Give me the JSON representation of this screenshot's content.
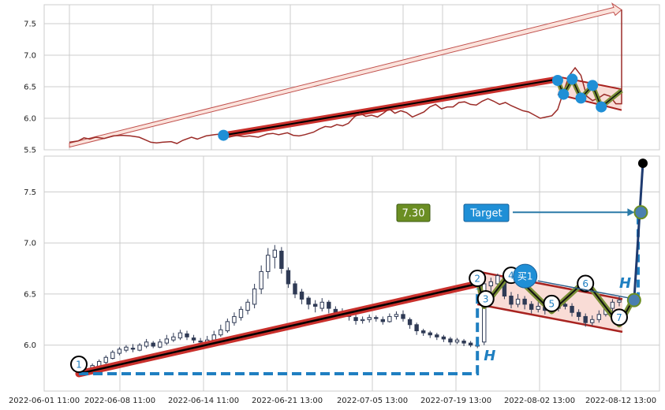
{
  "chart_data": {
    "type": "candlestick",
    "title": "",
    "grid": true,
    "x_tick_labels": [
      "2022-06-01 11:00",
      "2022-06-08 11:00",
      "2022-06-14 11:00",
      "2022-06-21 13:00",
      "2022-07-05 13:00",
      "2022-07-19 13:00",
      "2022-08-02 13:00",
      "2022-08-12 13:00"
    ],
    "top_panel": {
      "type": "line",
      "y_ticks": [
        "5.5",
        "6.0",
        "6.5",
        "7.0",
        "7.5"
      ],
      "ylim": [
        5.5,
        7.8
      ],
      "xlim": [
        0,
        190
      ],
      "price_series": [
        [
          0,
          5.62
        ],
        [
          3,
          5.64
        ],
        [
          5,
          5.69
        ],
        [
          7,
          5.67
        ],
        [
          9,
          5.7
        ],
        [
          12,
          5.68
        ],
        [
          15,
          5.72
        ],
        [
          18,
          5.73
        ],
        [
          21,
          5.72
        ],
        [
          24,
          5.7
        ],
        [
          26,
          5.66
        ],
        [
          28,
          5.62
        ],
        [
          30,
          5.61
        ],
        [
          32,
          5.62
        ],
        [
          35,
          5.63
        ],
        [
          37,
          5.6
        ],
        [
          39,
          5.65
        ],
        [
          42,
          5.7
        ],
        [
          44,
          5.67
        ],
        [
          47,
          5.72
        ],
        [
          50,
          5.74
        ],
        [
          52,
          5.75
        ],
        [
          55,
          5.7
        ],
        [
          57,
          5.73
        ],
        [
          60,
          5.71
        ],
        [
          62,
          5.72
        ],
        [
          65,
          5.7
        ],
        [
          68,
          5.75
        ],
        [
          70,
          5.76
        ],
        [
          72,
          5.74
        ],
        [
          75,
          5.77
        ],
        [
          77,
          5.73
        ],
        [
          79,
          5.72
        ],
        [
          81,
          5.74
        ],
        [
          84,
          5.78
        ],
        [
          86,
          5.83
        ],
        [
          88,
          5.87
        ],
        [
          90,
          5.86
        ],
        [
          92,
          5.9
        ],
        [
          94,
          5.88
        ],
        [
          96,
          5.92
        ],
        [
          98,
          6.02
        ],
        [
          100,
          6.08
        ],
        [
          102,
          6.03
        ],
        [
          104,
          6.05
        ],
        [
          106,
          6.02
        ],
        [
          108,
          6.08
        ],
        [
          110,
          6.15
        ],
        [
          112,
          6.08
        ],
        [
          114,
          6.12
        ],
        [
          116,
          6.09
        ],
        [
          118,
          6.02
        ],
        [
          120,
          6.06
        ],
        [
          122,
          6.1
        ],
        [
          124,
          6.18
        ],
        [
          126,
          6.22
        ],
        [
          128,
          6.15
        ],
        [
          130,
          6.18
        ],
        [
          132,
          6.18
        ],
        [
          134,
          6.25
        ],
        [
          136,
          6.26
        ],
        [
          138,
          6.22
        ],
        [
          140,
          6.21
        ],
        [
          142,
          6.27
        ],
        [
          144,
          6.31
        ],
        [
          146,
          6.27
        ],
        [
          148,
          6.22
        ],
        [
          150,
          6.25
        ],
        [
          152,
          6.2
        ],
        [
          154,
          6.16
        ],
        [
          156,
          6.12
        ],
        [
          158,
          6.1
        ],
        [
          160,
          6.05
        ],
        [
          162,
          6.0
        ],
        [
          164,
          6.02
        ],
        [
          166,
          6.04
        ],
        [
          168,
          6.14
        ],
        [
          170,
          6.42
        ],
        [
          172,
          6.68
        ],
        [
          174,
          6.8
        ],
        [
          176,
          6.68
        ],
        [
          178,
          6.35
        ],
        [
          180,
          6.28
        ],
        [
          182,
          6.32
        ],
        [
          184,
          6.38
        ],
        [
          186,
          6.35
        ],
        [
          188,
          6.23
        ],
        [
          190,
          6.23
        ]
      ]
    },
    "bottom_panel": {
      "type": "candlestick",
      "y_ticks": [
        "6.0",
        "6.5",
        "7.0",
        "7.5"
      ],
      "ylim": [
        5.55,
        7.85
      ],
      "xlim": [
        0,
        100
      ],
      "candles": [
        [
          2,
          5.74,
          5.75,
          5.72,
          5.77
        ],
        [
          3,
          5.73,
          5.76,
          5.72,
          5.77
        ],
        [
          4,
          5.76,
          5.8,
          5.75,
          5.82
        ],
        [
          5,
          5.79,
          5.84,
          5.78,
          5.86
        ],
        [
          6,
          5.83,
          5.88,
          5.81,
          5.9
        ],
        [
          7,
          5.87,
          5.93,
          5.86,
          5.95
        ],
        [
          8,
          5.92,
          5.96,
          5.9,
          5.98
        ],
        [
          9,
          5.95,
          5.98,
          5.93,
          6.0
        ],
        [
          10,
          5.97,
          5.96,
          5.93,
          6.01
        ],
        [
          11,
          5.95,
          6.0,
          5.94,
          6.02
        ],
        [
          12,
          5.99,
          6.03,
          5.97,
          6.06
        ],
        [
          13,
          6.02,
          5.99,
          5.97,
          6.04
        ],
        [
          14,
          5.98,
          6.03,
          5.97,
          6.06
        ],
        [
          15,
          6.02,
          6.06,
          6.0,
          6.1
        ],
        [
          16,
          6.05,
          6.08,
          6.03,
          6.12
        ],
        [
          17,
          6.07,
          6.12,
          6.05,
          6.15
        ],
        [
          18,
          6.11,
          6.08,
          6.05,
          6.14
        ],
        [
          19,
          6.07,
          6.05,
          6.02,
          6.1
        ],
        [
          20,
          6.04,
          6.03,
          6.0,
          6.07
        ],
        [
          21,
          6.02,
          6.05,
          6.0,
          6.09
        ],
        [
          22,
          6.05,
          6.1,
          6.03,
          6.14
        ],
        [
          23,
          6.1,
          6.15,
          6.08,
          6.2
        ],
        [
          24,
          6.14,
          6.23,
          6.12,
          6.26
        ],
        [
          25,
          6.22,
          6.28,
          6.19,
          6.32
        ],
        [
          26,
          6.27,
          6.35,
          6.24,
          6.38
        ],
        [
          27,
          6.34,
          6.42,
          6.3,
          6.45
        ],
        [
          28,
          6.4,
          6.55,
          6.36,
          6.6
        ],
        [
          29,
          6.55,
          6.72,
          6.5,
          6.78
        ],
        [
          30,
          6.72,
          6.88,
          6.65,
          6.95
        ],
        [
          31,
          6.86,
          6.93,
          6.75,
          6.98
        ],
        [
          32,
          6.92,
          6.75,
          6.7,
          6.96
        ],
        [
          33,
          6.73,
          6.6,
          6.56,
          6.76
        ],
        [
          34,
          6.6,
          6.5,
          6.46,
          6.63
        ],
        [
          35,
          6.52,
          6.45,
          6.4,
          6.55
        ],
        [
          36,
          6.46,
          6.4,
          6.35,
          6.48
        ],
        [
          37,
          6.4,
          6.38,
          6.32,
          6.44
        ],
        [
          38,
          6.36,
          6.42,
          6.33,
          6.46
        ],
        [
          39,
          6.42,
          6.36,
          6.31,
          6.44
        ],
        [
          40,
          6.35,
          6.3,
          6.26,
          6.38
        ],
        [
          41,
          6.3,
          6.33,
          6.27,
          6.36
        ],
        [
          42,
          6.32,
          6.28,
          6.24,
          6.35
        ],
        [
          43,
          6.27,
          6.24,
          6.2,
          6.3
        ],
        [
          44,
          6.24,
          6.25,
          6.21,
          6.28
        ],
        [
          45,
          6.25,
          6.27,
          6.22,
          6.3
        ],
        [
          46,
          6.27,
          6.26,
          6.23,
          6.29
        ],
        [
          47,
          6.25,
          6.23,
          6.2,
          6.28
        ],
        [
          48,
          6.23,
          6.28,
          6.22,
          6.31
        ],
        [
          49,
          6.28,
          6.3,
          6.25,
          6.33
        ],
        [
          50,
          6.3,
          6.26,
          6.23,
          6.34
        ],
        [
          51,
          6.25,
          6.2,
          6.16,
          6.27
        ],
        [
          52,
          6.2,
          6.14,
          6.1,
          6.22
        ],
        [
          53,
          6.14,
          6.12,
          6.09,
          6.16
        ],
        [
          54,
          6.12,
          6.1,
          6.07,
          6.14
        ],
        [
          55,
          6.1,
          6.08,
          6.05,
          6.12
        ],
        [
          56,
          6.08,
          6.06,
          6.03,
          6.1
        ],
        [
          57,
          6.06,
          6.03,
          6.0,
          6.08
        ],
        [
          58,
          6.03,
          6.05,
          6.01,
          6.07
        ],
        [
          59,
          6.04,
          6.02,
          5.99,
          6.06
        ],
        [
          60,
          6.02,
          6.0,
          5.98,
          6.04
        ],
        [
          61,
          6.0,
          5.99,
          5.97,
          6.02
        ],
        [
          62,
          6.03,
          6.6,
          6.0,
          6.66
        ],
        [
          63,
          6.58,
          6.62,
          6.5,
          6.66
        ],
        [
          64,
          6.6,
          6.68,
          6.55,
          6.7
        ],
        [
          65,
          6.66,
          6.48,
          6.45,
          6.7
        ],
        [
          66,
          6.48,
          6.4,
          6.36,
          6.52
        ],
        [
          67,
          6.4,
          6.45,
          6.37,
          6.5
        ],
        [
          68,
          6.45,
          6.4,
          6.35,
          6.48
        ],
        [
          69,
          6.4,
          6.35,
          6.31,
          6.43
        ],
        [
          70,
          6.35,
          6.38,
          6.32,
          6.42
        ],
        [
          71,
          6.38,
          6.34,
          6.3,
          6.41
        ],
        [
          72,
          6.34,
          6.36,
          6.31,
          6.4
        ],
        [
          73,
          6.36,
          6.4,
          6.33,
          6.44
        ],
        [
          74,
          6.4,
          6.38,
          6.35,
          6.45
        ],
        [
          75,
          6.38,
          6.32,
          6.28,
          6.41
        ],
        [
          76,
          6.32,
          6.28,
          6.24,
          6.35
        ],
        [
          77,
          6.28,
          6.22,
          6.18,
          6.31
        ],
        [
          78,
          6.22,
          6.25,
          6.19,
          6.29
        ],
        [
          79,
          6.25,
          6.3,
          6.22,
          6.34
        ],
        [
          80,
          6.3,
          6.36,
          6.28,
          6.4
        ],
        [
          81,
          6.36,
          6.42,
          6.33,
          6.45
        ],
        [
          82,
          6.42,
          6.44,
          6.38,
          6.48
        ]
      ],
      "pattern_points": [
        {
          "label": "1",
          "x": 2,
          "y": 5.72
        },
        {
          "label": "2",
          "x": 61,
          "y": 6.7
        },
        {
          "label": "3",
          "x": 62,
          "y": 6.36
        },
        {
          "label": "4",
          "x": 66,
          "y": 6.73
        },
        {
          "label": "5",
          "x": 72,
          "y": 6.3
        },
        {
          "label": "6",
          "x": 77,
          "y": 6.65
        },
        {
          "label": "7",
          "x": 82,
          "y": 6.18
        }
      ],
      "buy_marker": {
        "label": "买1",
        "x": 69,
        "y": 6.66
      },
      "target_box": {
        "label": "Target",
        "value": 7.3
      },
      "price_box": {
        "label": "7.30"
      },
      "height_label": "H",
      "target_price": 7.3,
      "spike_top": 7.78,
      "breakout_price": 6.44
    }
  },
  "colors": {
    "grid": "#cccccc",
    "axes_bg": "#ffffff",
    "price_line": "#9b2c28",
    "trend_red": "#c9302c",
    "trend_black": "#000000",
    "channel_fill": "#f9dcd6",
    "channel_border": "#a82320",
    "zigzag_green": "#7a8f36",
    "marker_blue": "#1f8fd6",
    "dashed_blue": "#1f7fc1",
    "candle_up": "#2f3a55",
    "candle_down": "#2f3a55",
    "price_box_bg": "#6b8e23",
    "target_box_bg": "#1f8fd6"
  }
}
